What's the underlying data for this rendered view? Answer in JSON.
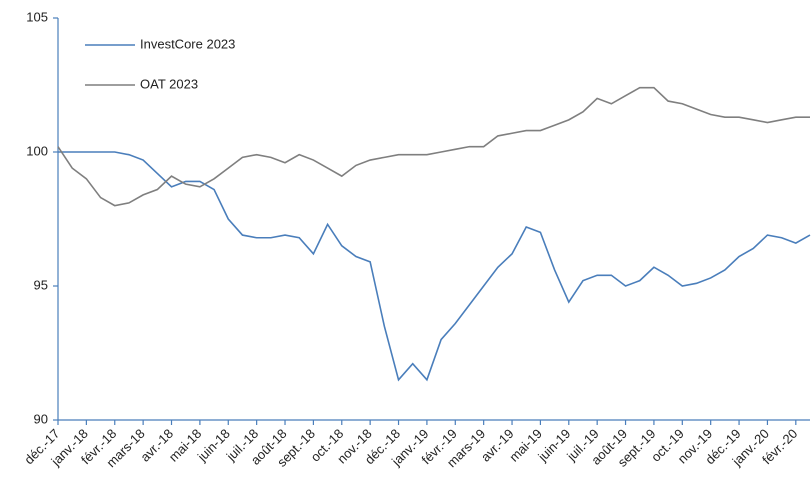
{
  "chart_data": {
    "type": "line",
    "categories": [
      "déc.-17",
      null,
      "janv.-18",
      null,
      "févr.-18",
      null,
      "mars-18",
      null,
      "avr.-18",
      null,
      "mai-18",
      null,
      "juin-18",
      null,
      "juil.-18",
      null,
      "août-18",
      null,
      "sept.-18",
      null,
      "oct.-18",
      null,
      "nov.-18",
      null,
      "déc.-18",
      null,
      "janv.-19",
      null,
      "févr.-19",
      null,
      "mars-19",
      null,
      "avr.-19",
      null,
      "mai-19",
      null,
      "juin-19",
      null,
      "juil.-19",
      null,
      "août-19",
      null,
      "sept.-19",
      null,
      "oct.-19",
      null,
      "nov.-19",
      null,
      "déc.-19",
      null,
      "janv.-20",
      null,
      "févr.-20",
      null
    ],
    "series": [
      {
        "name": "InvestCore 2023",
        "color": "#4a7ebb",
        "values": [
          100,
          100,
          100,
          100,
          100,
          99.9,
          99.7,
          99.2,
          98.7,
          98.9,
          98.9,
          98.6,
          97.5,
          96.9,
          96.8,
          96.8,
          96.9,
          96.8,
          96.2,
          97.3,
          96.5,
          96.1,
          95.9,
          93.5,
          91.5,
          92.1,
          91.5,
          93.0,
          93.6,
          94.3,
          95.0,
          95.7,
          96.2,
          97.2,
          97.0,
          95.6,
          94.4,
          95.2,
          95.4,
          95.4,
          95.0,
          95.2,
          95.7,
          95.4,
          95.0,
          95.1,
          95.3,
          95.6,
          96.1,
          96.4,
          96.9,
          96.8,
          96.6,
          96.9
        ]
      },
      {
        "name": "OAT 2023",
        "color": "#7f7f7f",
        "values": [
          100.2,
          99.4,
          99.0,
          98.3,
          98.0,
          98.1,
          98.4,
          98.6,
          99.1,
          98.8,
          98.7,
          99.0,
          99.4,
          99.8,
          99.9,
          99.8,
          99.6,
          99.9,
          99.7,
          99.4,
          99.1,
          99.5,
          99.7,
          99.8,
          99.9,
          99.9,
          99.9,
          100.0,
          100.1,
          100.2,
          100.2,
          100.6,
          100.7,
          100.8,
          100.8,
          101.0,
          101.2,
          101.5,
          102.0,
          101.8,
          102.1,
          102.4,
          102.4,
          101.9,
          101.8,
          101.6,
          101.4,
          101.3,
          101.3,
          101.2,
          101.1,
          101.2,
          101.3,
          101.3
        ]
      }
    ],
    "ylim": [
      90,
      105
    ],
    "yticks": [
      90,
      95,
      100,
      105
    ],
    "grid": false,
    "legend": "top-left"
  }
}
